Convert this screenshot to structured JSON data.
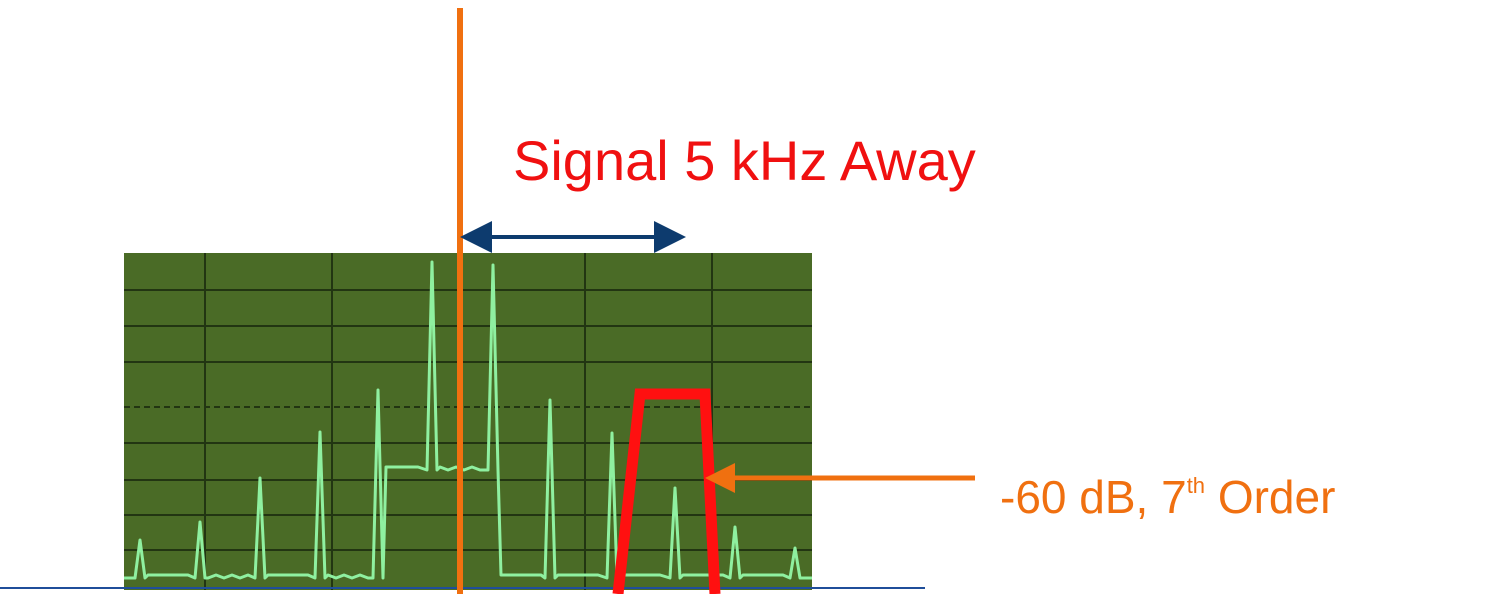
{
  "signal_label": "Signal 5 kHz Away",
  "order_label": {
    "main": "-60 dB, 7",
    "superscript": "th",
    "rest": "Order"
  }
}
